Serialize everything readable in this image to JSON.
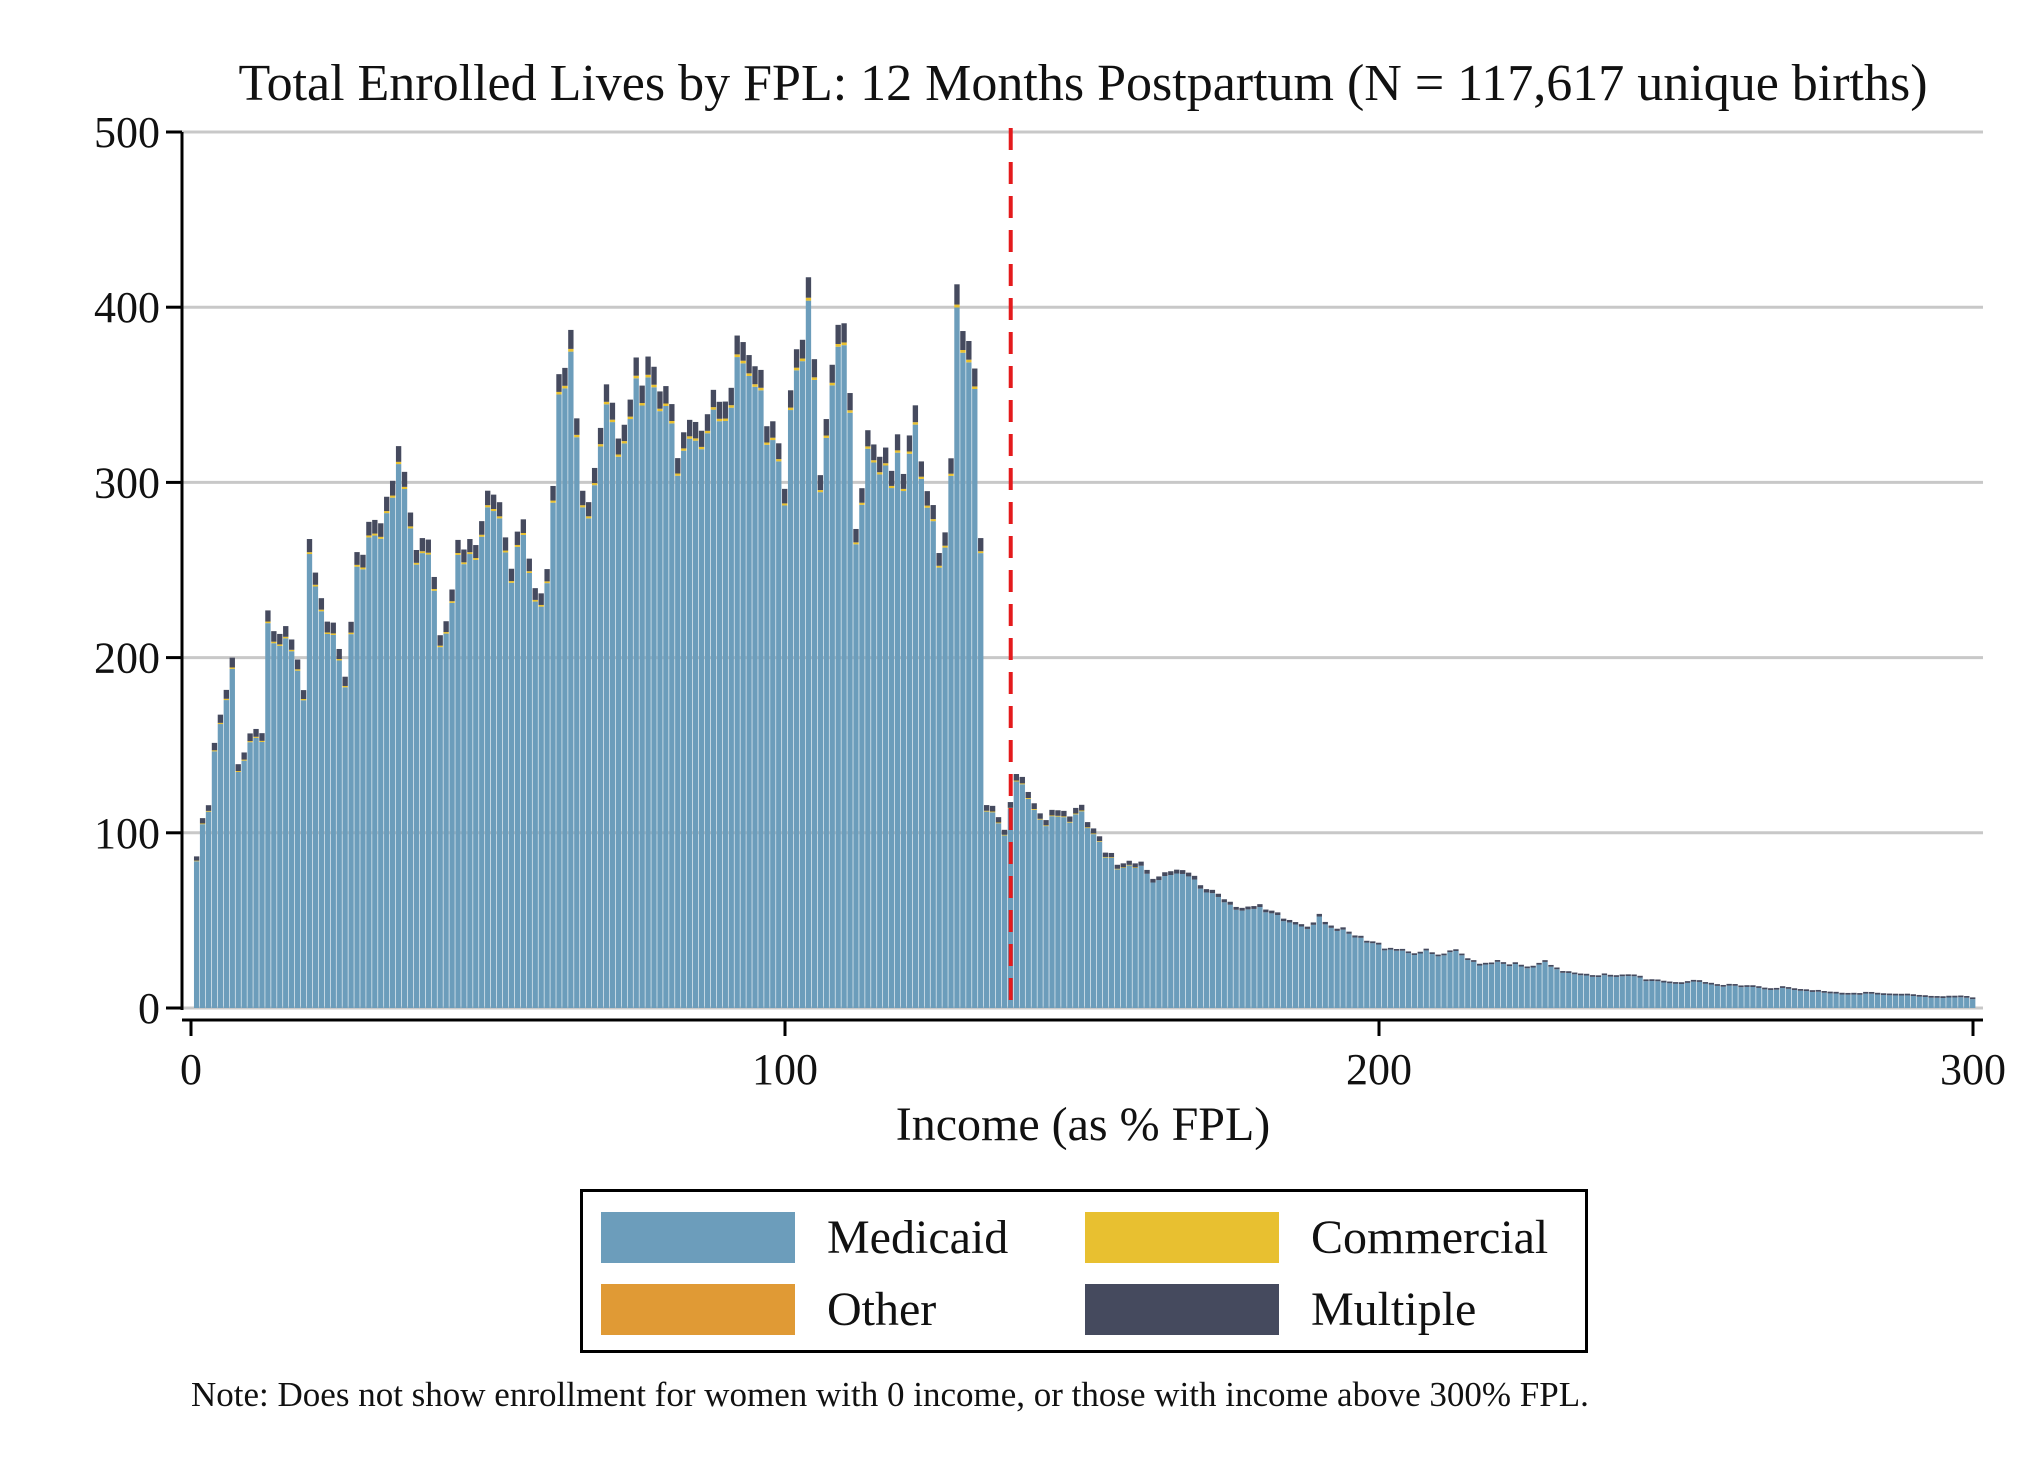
{
  "chart_data": {
    "type": "bar",
    "stacked": true,
    "title": "Total Enrolled Lives by FPL: 12 Months Postpartum (N = 117,617 unique births)",
    "xlabel": "Income (as % FPL)",
    "ylabel": "",
    "xlim": [
      0,
      300
    ],
    "ylim": [
      0,
      500
    ],
    "x_ticks": [
      "0",
      "100",
      "200",
      "300"
    ],
    "y_ticks": [
      "0",
      "100",
      "200",
      "300",
      "400",
      "500"
    ],
    "grid": "horizontal",
    "reference_line": {
      "x": 138,
      "style": "dashed",
      "color": "#e41a1c"
    },
    "legend_position": "bottom",
    "note": "Note: Does not show enrollment for women with 0 income, or those with income above 300% FPL.",
    "series": [
      {
        "name": "Medicaid",
        "color": "#6c9dbb"
      },
      {
        "name": "Commercial",
        "color": "#e8c030"
      },
      {
        "name": "Other",
        "color": "#e09a35"
      },
      {
        "name": "Multiple",
        "color": "#454a5e"
      }
    ],
    "profile_points": [
      [
        1,
        82
      ],
      [
        2,
        108
      ],
      [
        3,
        112
      ],
      [
        4,
        148
      ],
      [
        5,
        163
      ],
      [
        6,
        175
      ],
      [
        7,
        198
      ],
      [
        8,
        145
      ],
      [
        9,
        150
      ],
      [
        10,
        157
      ],
      [
        12,
        165
      ],
      [
        13,
        227
      ],
      [
        15,
        208
      ],
      [
        17,
        205
      ],
      [
        19,
        178
      ],
      [
        20,
        256
      ],
      [
        22,
        225
      ],
      [
        24,
        232
      ],
      [
        26,
        195
      ],
      [
        28,
        274
      ],
      [
        30,
        262
      ],
      [
        32,
        272
      ],
      [
        35,
        310
      ],
      [
        37,
        268
      ],
      [
        40,
        274
      ],
      [
        42,
        220
      ],
      [
        45,
        255
      ],
      [
        48,
        262
      ],
      [
        50,
        290
      ],
      [
        52,
        292
      ],
      [
        54,
        260
      ],
      [
        56,
        288
      ],
      [
        58,
        250
      ],
      [
        60,
        248
      ],
      [
        62,
        345
      ],
      [
        64,
        385
      ],
      [
        66,
        285
      ],
      [
        68,
        320
      ],
      [
        70,
        370
      ],
      [
        72,
        342
      ],
      [
        74,
        365
      ],
      [
        76,
        352
      ],
      [
        78,
        362
      ],
      [
        80,
        340
      ],
      [
        82,
        332
      ],
      [
        84,
        355
      ],
      [
        86,
        340
      ],
      [
        88,
        365
      ],
      [
        90,
        330
      ],
      [
        92,
        372
      ],
      [
        94,
        356
      ],
      [
        96,
        345
      ],
      [
        98,
        355
      ],
      [
        100,
        310
      ],
      [
        102,
        398
      ],
      [
        104,
        405
      ],
      [
        106,
        298
      ],
      [
        108,
        352
      ],
      [
        110,
        386
      ],
      [
        112,
        290
      ],
      [
        114,
        340
      ],
      [
        116,
        325
      ],
      [
        118,
        318
      ],
      [
        120,
        300
      ],
      [
        122,
        325
      ],
      [
        124,
        295
      ],
      [
        126,
        255
      ],
      [
        128,
        315
      ],
      [
        129,
        432
      ],
      [
        130,
        400
      ],
      [
        132,
        370
      ],
      [
        133,
        285
      ],
      [
        134,
        112
      ],
      [
        136,
        108
      ],
      [
        137,
        97
      ],
      [
        138,
        112
      ],
      [
        139,
        132
      ],
      [
        141,
        125
      ],
      [
        143,
        112
      ],
      [
        145,
        115
      ],
      [
        148,
        112
      ],
      [
        150,
        110
      ],
      [
        152,
        102
      ],
      [
        154,
        86
      ],
      [
        156,
        82
      ],
      [
        158,
        88
      ],
      [
        160,
        84
      ],
      [
        162,
        78
      ],
      [
        165,
        76
      ],
      [
        168,
        75
      ],
      [
        170,
        70
      ],
      [
        172,
        68
      ],
      [
        175,
        62
      ],
      [
        178,
        58
      ],
      [
        180,
        56
      ],
      [
        183,
        52
      ],
      [
        185,
        50
      ],
      [
        188,
        48
      ],
      [
        190,
        55
      ],
      [
        193,
        45
      ],
      [
        195,
        42
      ],
      [
        198,
        38
      ],
      [
        200,
        36
      ],
      [
        203,
        35
      ],
      [
        205,
        33
      ],
      [
        208,
        32
      ],
      [
        210,
        30
      ],
      [
        213,
        32
      ],
      [
        215,
        28
      ],
      [
        218,
        26
      ],
      [
        220,
        28
      ],
      [
        223,
        25
      ],
      [
        225,
        23
      ],
      [
        228,
        26
      ],
      [
        230,
        22
      ],
      [
        233,
        21
      ],
      [
        235,
        20
      ],
      [
        238,
        19
      ],
      [
        240,
        18
      ],
      [
        243,
        19
      ],
      [
        245,
        17
      ],
      [
        248,
        16
      ],
      [
        250,
        15
      ],
      [
        253,
        16
      ],
      [
        255,
        14
      ],
      [
        258,
        13
      ],
      [
        260,
        14
      ],
      [
        263,
        13
      ],
      [
        265,
        12
      ],
      [
        268,
        12
      ],
      [
        270,
        11
      ],
      [
        273,
        10
      ],
      [
        275,
        10
      ],
      [
        278,
        9
      ],
      [
        280,
        9
      ],
      [
        283,
        9
      ],
      [
        285,
        8
      ],
      [
        288,
        8
      ],
      [
        290,
        8
      ],
      [
        293,
        7
      ],
      [
        295,
        7
      ],
      [
        298,
        7
      ],
      [
        300,
        6
      ]
    ]
  },
  "legend": {
    "items": [
      {
        "label": "Medicaid",
        "color": "#6c9dbb"
      },
      {
        "label": "Commercial",
        "color": "#e8c030"
      },
      {
        "label": "Other",
        "color": "#e09a35"
      },
      {
        "label": "Multiple",
        "color": "#454a5e"
      }
    ]
  }
}
